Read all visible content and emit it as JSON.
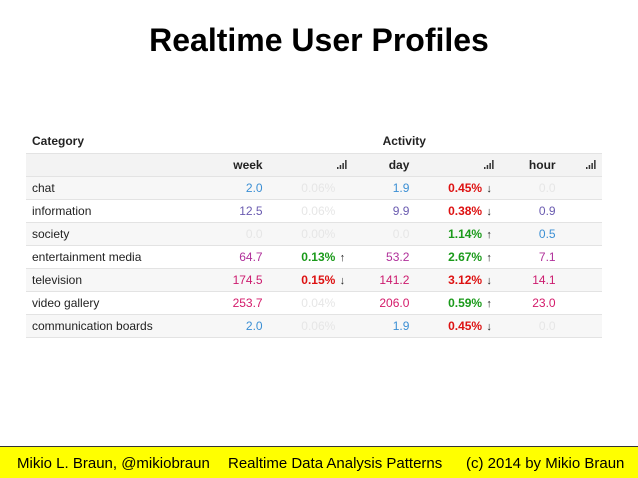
{
  "title": "Realtime User Profiles",
  "table": {
    "header_category": "Category",
    "header_group": "Activity",
    "periods": [
      "week",
      "day",
      "hour"
    ],
    "rows": [
      {
        "category": "chat",
        "week": {
          "value": "2.0",
          "color": "#3b8fd4",
          "pct": "0.06%",
          "trend": "none"
        },
        "day": {
          "value": "1.9",
          "color": "#3b8fd4",
          "pct": "0.45%",
          "trend": "down"
        },
        "hour": {
          "value": "0.0",
          "color": "#e6e6e6"
        }
      },
      {
        "category": "information",
        "week": {
          "value": "12.5",
          "color": "#6a5bb0",
          "pct": "0.06%",
          "trend": "none"
        },
        "day": {
          "value": "9.9",
          "color": "#6a5bb0",
          "pct": "0.38%",
          "trend": "down"
        },
        "hour": {
          "value": "0.9",
          "color": "#6a5bb0"
        }
      },
      {
        "category": "society",
        "week": {
          "value": "0.0",
          "color": "#e6e6e6",
          "pct": "0.00%",
          "trend": "none"
        },
        "day": {
          "value": "0.0",
          "color": "#e6e6e6",
          "pct": "1.14%",
          "trend": "up"
        },
        "hour": {
          "value": "0.5",
          "color": "#3b8fd4"
        }
      },
      {
        "category": "entertainment media",
        "week": {
          "value": "64.7",
          "color": "#b0309a",
          "pct": "0.13%",
          "trend": "up"
        },
        "day": {
          "value": "53.2",
          "color": "#b0309a",
          "pct": "2.67%",
          "trend": "up"
        },
        "hour": {
          "value": "7.1",
          "color": "#b0309a"
        }
      },
      {
        "category": "television",
        "week": {
          "value": "174.5",
          "color": "#cc1a6e",
          "pct": "0.15%",
          "trend": "down"
        },
        "day": {
          "value": "141.2",
          "color": "#cc1a6e",
          "pct": "3.12%",
          "trend": "down"
        },
        "hour": {
          "value": "14.1",
          "color": "#cc1a6e"
        }
      },
      {
        "category": "video gallery",
        "week": {
          "value": "253.7",
          "color": "#d41a6a",
          "pct": "0.04%",
          "trend": "none"
        },
        "day": {
          "value": "206.0",
          "color": "#d41a6a",
          "pct": "0.59%",
          "trend": "up"
        },
        "hour": {
          "value": "23.0",
          "color": "#d41a6a"
        }
      },
      {
        "category": "communication boards",
        "week": {
          "value": "2.0",
          "color": "#3b8fd4",
          "pct": "0.06%",
          "trend": "none"
        },
        "day": {
          "value": "1.9",
          "color": "#3b8fd4",
          "pct": "0.45%",
          "trend": "down"
        },
        "hour": {
          "value": "0.0",
          "color": "#e6e6e6"
        }
      }
    ]
  },
  "footer": {
    "author": "Mikio L. Braun, @mikiobraun",
    "talk": "Realtime Data Analysis Patterns",
    "copyright": "(c) 2014 by Mikio Braun"
  },
  "colors": {
    "up": "#1a9a1a",
    "down": "#dd1111",
    "faded": "#e6e6e6",
    "footer_bg": "#ffff00"
  }
}
